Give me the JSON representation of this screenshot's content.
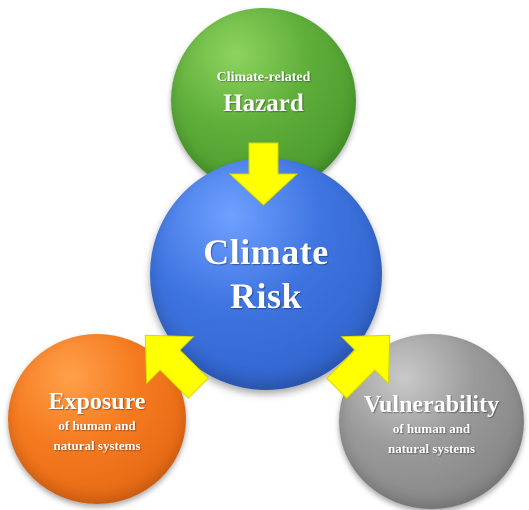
{
  "diagram": {
    "hazard": {
      "subtitle": "Climate-related",
      "title": "Hazard",
      "color": "#5fae3a"
    },
    "risk": {
      "line1": "Climate",
      "line2": "Risk",
      "color": "#3e74e0"
    },
    "exposure": {
      "title": "Exposure",
      "sub_line1": "of human and",
      "sub_line2": "natural systems",
      "color": "#f57a1f"
    },
    "vulnerability": {
      "title": "Vulnerability",
      "sub_line1": "of human and",
      "sub_line2": "natural systems",
      "color": "#9a9a9a"
    },
    "arrow_color": "#ffff00"
  }
}
